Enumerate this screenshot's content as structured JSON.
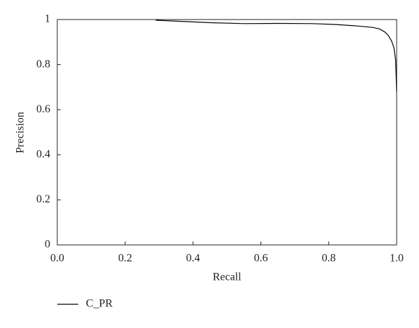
{
  "chart_data": {
    "type": "line",
    "xlabel": "Recall",
    "ylabel": "Precision",
    "x": [
      0.29,
      0.35,
      0.45,
      0.55,
      0.65,
      0.75,
      0.82,
      0.88,
      0.93,
      0.95,
      0.965,
      0.975,
      0.985,
      0.992,
      0.997,
      1.0
    ],
    "series": [
      {
        "name": "C_PR",
        "color": "#000000",
        "values": [
          0.997,
          0.993,
          0.986,
          0.982,
          0.983,
          0.982,
          0.978,
          0.972,
          0.965,
          0.958,
          0.945,
          0.93,
          0.905,
          0.875,
          0.82,
          0.68
        ]
      }
    ],
    "xlim": [
      0,
      1
    ],
    "ylim": [
      0,
      1
    ],
    "xticks": [
      {
        "value": 0,
        "label": "0.0"
      },
      0.2,
      0.4,
      0.6,
      0.8,
      {
        "value": 1,
        "label": "1.0"
      }
    ],
    "yticks": [
      0,
      0.2,
      0.4,
      0.6,
      0.8,
      1
    ],
    "grid": false,
    "legend": "bottom-left"
  }
}
